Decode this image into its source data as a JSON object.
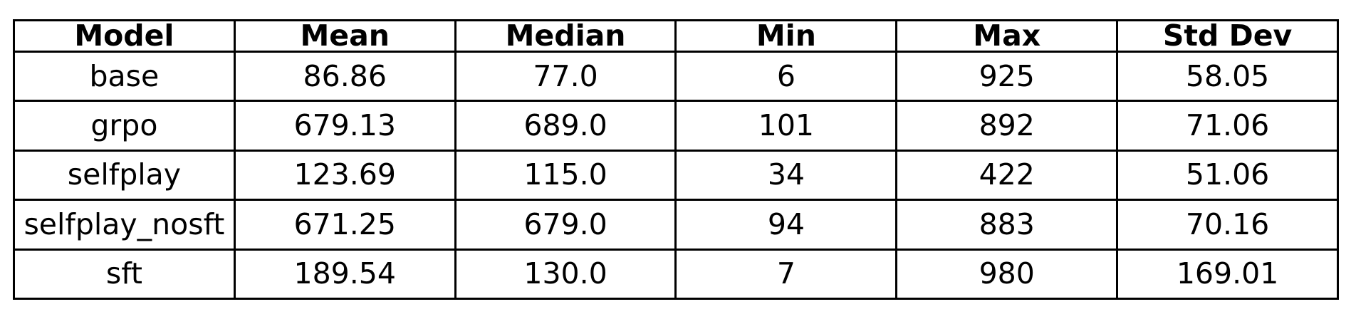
{
  "chart_data": {
    "type": "table",
    "columns": [
      "Model",
      "Mean",
      "Median",
      "Min",
      "Max",
      "Std Dev"
    ],
    "rows": [
      [
        "base",
        "86.86",
        "77.0",
        "6",
        "925",
        "58.05"
      ],
      [
        "grpo",
        "679.13",
        "689.0",
        "101",
        "892",
        "71.06"
      ],
      [
        "selfplay",
        "123.69",
        "115.0",
        "34",
        "422",
        "51.06"
      ],
      [
        "selfplay_nosft",
        "671.25",
        "679.0",
        "94",
        "883",
        "70.16"
      ],
      [
        "sft",
        "189.54",
        "130.0",
        "7",
        "980",
        "169.01"
      ]
    ]
  }
}
